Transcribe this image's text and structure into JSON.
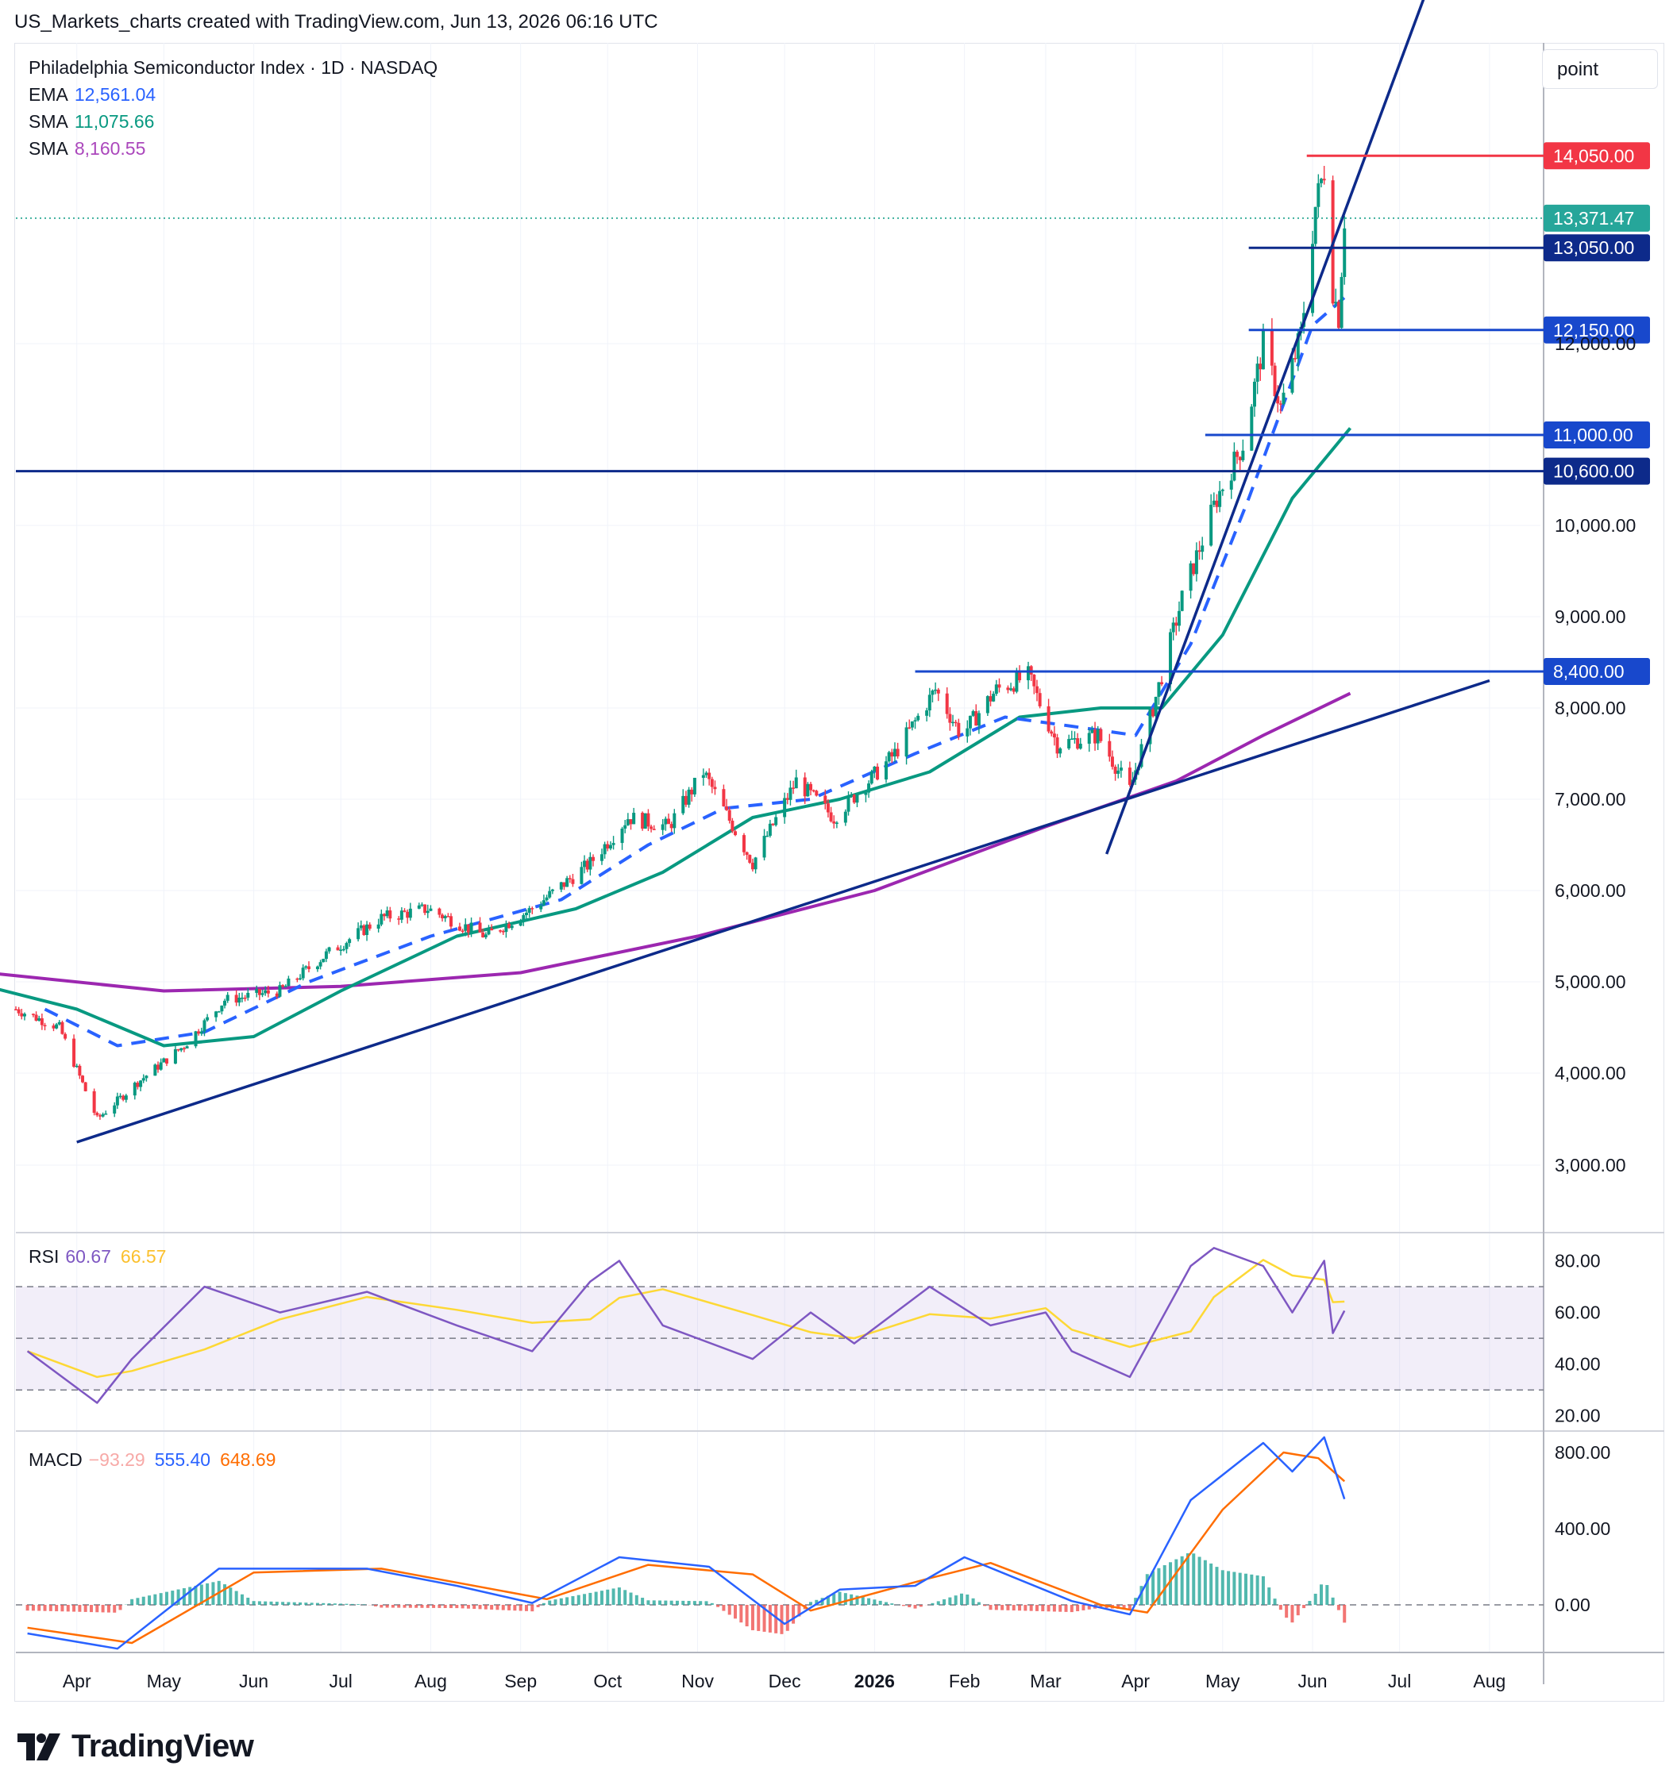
{
  "caption": "US_Markets_charts created with TradingView.com, Jun 13, 2026 06:16 UTC",
  "instrument": "Philadelphia Semiconductor Index · 1D · NASDAQ",
  "unit_button": "point",
  "brand": "TradingView",
  "colors": {
    "up": "#089981",
    "down": "#f23645",
    "ema": "#2962ff",
    "sma_short": "#089981",
    "sma_long": "#9c27b0",
    "trendline": "#0d2a8a",
    "hline": "#1848cc",
    "resistance": "#f23645",
    "rsi": "#7e57c2",
    "rsi_ma": "#fdd835",
    "macd": "#2962ff",
    "signal": "#ff6d00",
    "hist_neg_label": "#f7a9a7"
  },
  "indicators": {
    "ema": {
      "label": "EMA",
      "value": "12,561.04",
      "color": "#2962ff"
    },
    "sma1": {
      "label": "SMA",
      "value": "11,075.66",
      "color": "#089981"
    },
    "sma2": {
      "label": "SMA",
      "value": "8,160.55",
      "color": "#ab47bc"
    }
  },
  "rsi_legend": {
    "label": "RSI",
    "value": "60.67",
    "ma": "66.57"
  },
  "macd_legend": {
    "label": "MACD",
    "hist": "−93.29",
    "macd": "555.40",
    "signal": "648.69"
  },
  "chart_data": {
    "type": "candlestick",
    "x_axis_labels": [
      "Apr",
      "May",
      "Jun",
      "Jul",
      "Aug",
      "Sep",
      "Oct",
      "Nov",
      "Dec",
      "2026",
      "Feb",
      "Mar",
      "Apr",
      "May",
      "Jun",
      "Jul",
      "Aug"
    ],
    "price_axis": {
      "ticks": [
        "3,000.00",
        "4,000.00",
        "5,000.00",
        "6,000.00",
        "7,000.00",
        "8,000.00",
        "9,000.00",
        "10,000.00",
        "12,000.00"
      ],
      "ylim": [
        2300,
        14700
      ]
    },
    "current_price": "13,371.47",
    "horizontal_levels": [
      {
        "value": 14050,
        "label": "14,050.00",
        "kind": "resistance"
      },
      {
        "value": 13050,
        "label": "13,050.00",
        "kind": "dark"
      },
      {
        "value": 12150,
        "label": "12,150.00",
        "kind": "blue"
      },
      {
        "value": 11000,
        "label": "11,000.00",
        "kind": "blue"
      },
      {
        "value": 10600,
        "label": "10,600.00",
        "kind": "dark"
      },
      {
        "value": 8400,
        "label": "8,400.00",
        "kind": "blue"
      }
    ],
    "trendlines": [
      {
        "from": {
          "date": "2025-04-01",
          "price": 3250
        },
        "to": {
          "date": "2026-08-01",
          "price": 8300
        }
      },
      {
        "from": {
          "date": "2026-03-22",
          "price": 6400
        },
        "to": {
          "date": "2026-07-13",
          "price": 16100
        }
      }
    ],
    "price_path": [
      {
        "date": "2025-03-11",
        "close": 4700
      },
      {
        "date": "2025-03-26",
        "close": 4500
      },
      {
        "date": "2025-04-08",
        "close": 3500
      },
      {
        "date": "2025-04-22",
        "close": 3900
      },
      {
        "date": "2025-05-08",
        "close": 4300
      },
      {
        "date": "2025-05-22",
        "close": 4800
      },
      {
        "date": "2025-06-10",
        "close": 4900
      },
      {
        "date": "2025-06-26",
        "close": 5300
      },
      {
        "date": "2025-07-15",
        "close": 5700
      },
      {
        "date": "2025-07-31",
        "close": 5800
      },
      {
        "date": "2025-08-20",
        "close": 5500
      },
      {
        "date": "2025-09-05",
        "close": 5800
      },
      {
        "date": "2025-09-25",
        "close": 6300
      },
      {
        "date": "2025-10-08",
        "close": 6800
      },
      {
        "date": "2025-10-22",
        "close": 6700
      },
      {
        "date": "2025-11-03",
        "close": 7300
      },
      {
        "date": "2025-11-20",
        "close": 6300
      },
      {
        "date": "2025-12-05",
        "close": 7200
      },
      {
        "date": "2025-12-18",
        "close": 6800
      },
      {
        "date": "2026-01-08",
        "close": 7500
      },
      {
        "date": "2026-01-22",
        "close": 8200
      },
      {
        "date": "2026-01-31",
        "close": 7700
      },
      {
        "date": "2026-02-12",
        "close": 8200
      },
      {
        "date": "2026-02-23",
        "close": 8350
      },
      {
        "date": "2026-03-05",
        "close": 7600
      },
      {
        "date": "2026-03-19",
        "close": 7700
      },
      {
        "date": "2026-03-30",
        "close": 7100
      },
      {
        "date": "2026-04-07",
        "close": 8000
      },
      {
        "date": "2026-04-17",
        "close": 9200
      },
      {
        "date": "2026-04-29",
        "close": 10300
      },
      {
        "date": "2026-05-08",
        "close": 10900
      },
      {
        "date": "2026-05-15",
        "close": 12000
      },
      {
        "date": "2026-05-21",
        "close": 11300
      },
      {
        "date": "2026-05-28",
        "close": 12100
      },
      {
        "date": "2026-06-02",
        "close": 13500
      },
      {
        "date": "2026-06-05",
        "close": 13900
      },
      {
        "date": "2026-06-08",
        "close": 12600
      },
      {
        "date": "2026-06-10",
        "close": 12300
      },
      {
        "date": "2026-06-12",
        "close": 13371
      }
    ],
    "ema_path": [
      {
        "date": "2025-03-21",
        "value": 4700
      },
      {
        "date": "2025-04-15",
        "value": 4300
      },
      {
        "date": "2025-05-15",
        "value": 4450
      },
      {
        "date": "2025-06-20",
        "value": 5000
      },
      {
        "date": "2025-08-01",
        "value": 5500
      },
      {
        "date": "2025-09-15",
        "value": 5900
      },
      {
        "date": "2025-10-15",
        "value": 6500
      },
      {
        "date": "2025-11-10",
        "value": 6900
      },
      {
        "date": "2025-12-10",
        "value": 7000
      },
      {
        "date": "2026-01-15",
        "value": 7500
      },
      {
        "date": "2026-02-15",
        "value": 7900
      },
      {
        "date": "2026-03-10",
        "value": 7800
      },
      {
        "date": "2026-04-01",
        "value": 7700
      },
      {
        "date": "2026-04-20",
        "value": 8700
      },
      {
        "date": "2026-05-10",
        "value": 10300
      },
      {
        "date": "2026-06-01",
        "value": 12200
      },
      {
        "date": "2026-06-14",
        "value": 12561
      }
    ],
    "sma_short_path": [
      {
        "date": "2025-03-01",
        "value": 4950
      },
      {
        "date": "2025-04-01",
        "value": 4700
      },
      {
        "date": "2025-05-01",
        "value": 4300
      },
      {
        "date": "2025-06-01",
        "value": 4400
      },
      {
        "date": "2025-07-01",
        "value": 4900
      },
      {
        "date": "2025-08-10",
        "value": 5500
      },
      {
        "date": "2025-09-20",
        "value": 5800
      },
      {
        "date": "2025-10-20",
        "value": 6200
      },
      {
        "date": "2025-11-20",
        "value": 6800
      },
      {
        "date": "2025-12-20",
        "value": 7000
      },
      {
        "date": "2026-01-20",
        "value": 7300
      },
      {
        "date": "2026-02-20",
        "value": 7900
      },
      {
        "date": "2026-03-20",
        "value": 8000
      },
      {
        "date": "2026-04-10",
        "value": 8000
      },
      {
        "date": "2026-05-01",
        "value": 8800
      },
      {
        "date": "2026-05-25",
        "value": 10300
      },
      {
        "date": "2026-06-14",
        "value": 11075
      }
    ],
    "sma_long_path": [
      {
        "date": "2025-03-01",
        "value": 5100
      },
      {
        "date": "2025-05-01",
        "value": 4900
      },
      {
        "date": "2025-07-01",
        "value": 4950
      },
      {
        "date": "2025-09-01",
        "value": 5100
      },
      {
        "date": "2025-11-01",
        "value": 5500
      },
      {
        "date": "2026-01-01",
        "value": 6000
      },
      {
        "date": "2026-03-01",
        "value": 6700
      },
      {
        "date": "2026-04-15",
        "value": 7200
      },
      {
        "date": "2026-05-15",
        "value": 7700
      },
      {
        "date": "2026-06-14",
        "value": 8160
      }
    ],
    "rsi": {
      "ylim": [
        15,
        90
      ],
      "ticks": [
        "80.00",
        "60.00",
        "40.00",
        "20.00"
      ],
      "band": [
        30,
        70
      ],
      "mid": 50
    },
    "rsi_path": [
      {
        "date": "2025-03-15",
        "value": 45
      },
      {
        "date": "2025-04-08",
        "value": 25
      },
      {
        "date": "2025-04-20",
        "value": 42
      },
      {
        "date": "2025-05-15",
        "value": 70
      },
      {
        "date": "2025-06-10",
        "value": 60
      },
      {
        "date": "2025-07-10",
        "value": 68
      },
      {
        "date": "2025-08-10",
        "value": 55
      },
      {
        "date": "2025-09-05",
        "value": 45
      },
      {
        "date": "2025-09-25",
        "value": 72
      },
      {
        "date": "2025-10-05",
        "value": 80
      },
      {
        "date": "2025-10-20",
        "value": 55
      },
      {
        "date": "2025-11-20",
        "value": 42
      },
      {
        "date": "2025-12-10",
        "value": 60
      },
      {
        "date": "2025-12-25",
        "value": 48
      },
      {
        "date": "2026-01-20",
        "value": 70
      },
      {
        "date": "2026-02-10",
        "value": 55
      },
      {
        "date": "2026-03-01",
        "value": 60
      },
      {
        "date": "2026-03-10",
        "value": 45
      },
      {
        "date": "2026-03-30",
        "value": 35
      },
      {
        "date": "2026-04-20",
        "value": 78
      },
      {
        "date": "2026-04-28",
        "value": 85
      },
      {
        "date": "2026-05-15",
        "value": 78
      },
      {
        "date": "2026-05-25",
        "value": 60
      },
      {
        "date": "2026-06-05",
        "value": 80
      },
      {
        "date": "2026-06-08",
        "value": 52
      },
      {
        "date": "2026-06-12",
        "value": 60.67
      }
    ],
    "macd": {
      "ylim": [
        -250,
        900
      ],
      "ticks": [
        "800.00",
        "400.00",
        "0.00"
      ]
    },
    "macd_path": [
      {
        "date": "2025-03-15",
        "value": -150
      },
      {
        "date": "2025-04-15",
        "value": -230
      },
      {
        "date": "2025-05-20",
        "value": 190
      },
      {
        "date": "2025-07-10",
        "value": 190
      },
      {
        "date": "2025-08-10",
        "value": 100
      },
      {
        "date": "2025-09-05",
        "value": 10
      },
      {
        "date": "2025-10-05",
        "value": 250
      },
      {
        "date": "2025-11-05",
        "value": 200
      },
      {
        "date": "2025-12-01",
        "value": -100
      },
      {
        "date": "2025-12-20",
        "value": 80
      },
      {
        "date": "2026-01-15",
        "value": 100
      },
      {
        "date": "2026-02-01",
        "value": 250
      },
      {
        "date": "2026-03-10",
        "value": 20
      },
      {
        "date": "2026-03-30",
        "value": -50
      },
      {
        "date": "2026-04-20",
        "value": 550
      },
      {
        "date": "2026-05-15",
        "value": 850
      },
      {
        "date": "2026-05-25",
        "value": 700
      },
      {
        "date": "2026-06-05",
        "value": 880
      },
      {
        "date": "2026-06-12",
        "value": 555.4
      }
    ],
    "signal_path": [
      {
        "date": "2025-03-15",
        "value": -120
      },
      {
        "date": "2025-04-20",
        "value": -200
      },
      {
        "date": "2025-06-01",
        "value": 170
      },
      {
        "date": "2025-07-15",
        "value": 190
      },
      {
        "date": "2025-09-10",
        "value": 30
      },
      {
        "date": "2025-10-15",
        "value": 210
      },
      {
        "date": "2025-11-20",
        "value": 160
      },
      {
        "date": "2025-12-10",
        "value": -30
      },
      {
        "date": "2026-01-20",
        "value": 140
      },
      {
        "date": "2026-02-10",
        "value": 220
      },
      {
        "date": "2026-03-20",
        "value": 0
      },
      {
        "date": "2026-04-05",
        "value": -40
      },
      {
        "date": "2026-05-01",
        "value": 500
      },
      {
        "date": "2026-05-22",
        "value": 800
      },
      {
        "date": "2026-06-03",
        "value": 770
      },
      {
        "date": "2026-06-12",
        "value": 648.69
      }
    ]
  }
}
